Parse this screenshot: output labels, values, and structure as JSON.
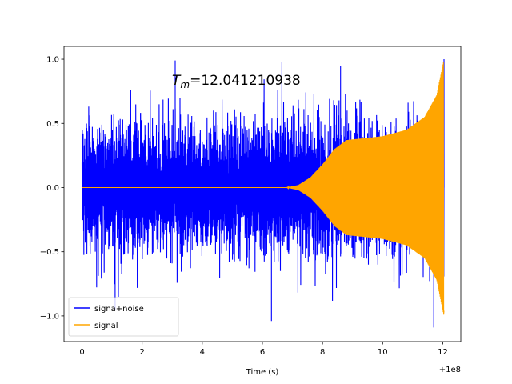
{
  "chart_data": {
    "type": "line",
    "title_symbol": "T",
    "title_subscript": "m",
    "title_value": "=12.041210938",
    "xlabel": "Time (s)",
    "ylabel": "",
    "x_offset_label": "+1e8",
    "xlim": [
      -0.6,
      12.6
    ],
    "ylim": [
      -1.2,
      1.1
    ],
    "x_ticks": [
      0,
      2,
      4,
      6,
      8,
      10,
      12
    ],
    "x_tick_labels": [
      "0",
      "2",
      "4",
      "6",
      "8",
      "10",
      "12"
    ],
    "y_ticks": [
      -1.0,
      -0.5,
      0.0,
      0.5,
      1.0
    ],
    "y_tick_labels": [
      "−1.0",
      "−0.5",
      "0.0",
      "0.5",
      "1.0"
    ],
    "legend_location": "lower-left",
    "series": [
      {
        "name": "signa+noise",
        "color": "#0000ff",
        "x_range": [
          0,
          12.04
        ],
        "typical_amplitude": 0.62,
        "peak_max": 1.0,
        "peak_min": -1.09
      },
      {
        "name": "signal",
        "color": "#ffa500",
        "x_range": [
          0,
          12.04
        ],
        "envelope": [
          {
            "x": 0,
            "y": 0.0
          },
          {
            "x": 6.8,
            "y": 0.0
          },
          {
            "x": 7.2,
            "y": 0.02
          },
          {
            "x": 7.6,
            "y": 0.08
          },
          {
            "x": 8.0,
            "y": 0.18
          },
          {
            "x": 8.4,
            "y": 0.3
          },
          {
            "x": 8.8,
            "y": 0.37
          },
          {
            "x": 9.2,
            "y": 0.38
          },
          {
            "x": 10.0,
            "y": 0.4
          },
          {
            "x": 10.8,
            "y": 0.45
          },
          {
            "x": 11.4,
            "y": 0.55
          },
          {
            "x": 11.8,
            "y": 0.72
          },
          {
            "x": 12.04,
            "y": 1.0
          }
        ],
        "end_min": -0.96
      }
    ]
  }
}
